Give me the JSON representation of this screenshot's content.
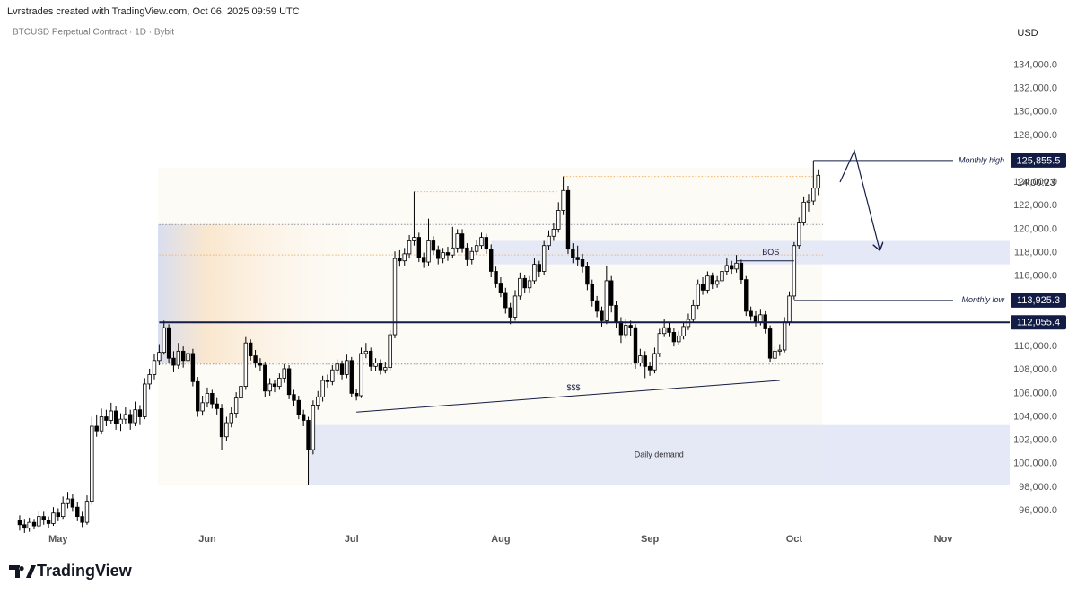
{
  "header": "Lvrstrades created with TradingView.com, Oct 06, 2025 09:59 UTC",
  "footer": "TradingView",
  "chart_data": {
    "type": "candlestick",
    "title": "BTCUSD Perpetual Contract · 1D · Bybit",
    "y_label": "USD",
    "countdown": "14:00:23",
    "up_color": "#ffffff",
    "down_color": "#000000",
    "wick_color": "#000000",
    "grid": false,
    "xlim": [
      -2.6,
      205.8
    ],
    "xticks": [
      {
        "value": 8,
        "label": "May"
      },
      {
        "value": 39,
        "label": "Jun"
      },
      {
        "value": 69,
        "label": "Jul"
      },
      {
        "value": 100,
        "label": "Aug"
      },
      {
        "value": 131,
        "label": "Sep"
      },
      {
        "value": 161,
        "label": "Oct"
      },
      {
        "value": 192,
        "label": "Nov"
      }
    ],
    "ylim": [
      94400,
      136100
    ],
    "yticks": [
      {
        "value": 96000,
        "label": "96,000.0"
      },
      {
        "value": 98000,
        "label": "98,000.0"
      },
      {
        "value": 100000,
        "label": "100,000.0"
      },
      {
        "value": 102000,
        "label": "102,000.0"
      },
      {
        "value": 104000,
        "label": "104,000.0"
      },
      {
        "value": 106000,
        "label": "106,000.0"
      },
      {
        "value": 108000,
        "label": "108,000.0"
      },
      {
        "value": 110000,
        "label": "110,000.0"
      },
      {
        "value": 112000,
        "label": "112,000.0"
      },
      {
        "value": 114000,
        "label": "114,000.0"
      },
      {
        "value": 116000,
        "label": "116,000.0"
      },
      {
        "value": 118000,
        "label": "118,000.0"
      },
      {
        "value": 120000,
        "label": "120,000.0"
      },
      {
        "value": 122000,
        "label": "122,000.0"
      },
      {
        "value": 124000,
        "label": "124,000.0"
      },
      {
        "value": 126000,
        "label": "126,000.0"
      },
      {
        "value": 128000,
        "label": "128,000.0"
      },
      {
        "value": 130000,
        "label": "130,000.0"
      },
      {
        "value": 132000,
        "label": "132,000.0"
      },
      {
        "value": 134000,
        "label": "134,000.0"
      }
    ],
    "candles": [
      [
        95200,
        95600,
        94300,
        94800
      ],
      [
        94800,
        95300,
        94100,
        94500
      ],
      [
        94500,
        95400,
        94200,
        95000
      ],
      [
        95000,
        95300,
        94400,
        94700
      ],
      [
        94700,
        96000,
        94500,
        95500
      ],
      [
        95500,
        95900,
        94800,
        95200
      ],
      [
        95200,
        95500,
        94500,
        94900
      ],
      [
        94900,
        96300,
        94700,
        95800
      ],
      [
        95800,
        96200,
        95100,
        95500
      ],
      [
        95500,
        97200,
        95300,
        96600
      ],
      [
        96600,
        97600,
        96200,
        97000
      ],
      [
        97000,
        97400,
        95900,
        96300
      ],
      [
        96300,
        96700,
        95100,
        95500
      ],
      [
        95500,
        95900,
        94600,
        95000
      ],
      [
        95000,
        97300,
        94800,
        96800
      ],
      [
        96800,
        104000,
        96500,
        103200
      ],
      [
        103200,
        104200,
        102300,
        102800
      ],
      [
        102800,
        104700,
        102500,
        104000
      ],
      [
        104000,
        104600,
        103200,
        103700
      ],
      [
        103700,
        105200,
        103400,
        104500
      ],
      [
        104500,
        104900,
        102900,
        103400
      ],
      [
        103400,
        104300,
        102800,
        103800
      ],
      [
        103800,
        104800,
        103400,
        104200
      ],
      [
        104200,
        104600,
        102900,
        103500
      ],
      [
        103500,
        105300,
        103200,
        104600
      ],
      [
        104600,
        105000,
        103300,
        104000
      ],
      [
        104000,
        107300,
        103800,
        106800
      ],
      [
        106800,
        108100,
        106300,
        107600
      ],
      [
        107600,
        109400,
        107200,
        108800
      ],
      [
        108800,
        110200,
        108400,
        109500
      ],
      [
        109500,
        112200,
        109300,
        111600
      ],
      [
        111600,
        111900,
        108600,
        109000
      ],
      [
        109000,
        109600,
        107800,
        108400
      ],
      [
        108400,
        110300,
        108100,
        109600
      ],
      [
        109600,
        110000,
        108200,
        108800
      ],
      [
        108800,
        110000,
        108400,
        109400
      ],
      [
        109400,
        109800,
        106600,
        107000
      ],
      [
        107000,
        107400,
        104000,
        104500
      ],
      [
        104500,
        105800,
        104100,
        105200
      ],
      [
        105200,
        106500,
        104800,
        106000
      ],
      [
        106000,
        106300,
        104700,
        105100
      ],
      [
        105100,
        105600,
        104200,
        104700
      ],
      [
        104700,
        105100,
        101200,
        102300
      ],
      [
        102300,
        104000,
        101900,
        103500
      ],
      [
        103500,
        104800,
        103100,
        104300
      ],
      [
        104300,
        106100,
        103900,
        105600
      ],
      [
        105600,
        107100,
        105200,
        106600
      ],
      [
        106600,
        110800,
        106300,
        110300
      ],
      [
        110300,
        110600,
        108800,
        109200
      ],
      [
        109200,
        109700,
        108200,
        108600
      ],
      [
        108600,
        109000,
        107900,
        108400
      ],
      [
        108400,
        108700,
        105700,
        106200
      ],
      [
        106200,
        107300,
        105800,
        106800
      ],
      [
        106800,
        107100,
        106100,
        106600
      ],
      [
        106600,
        107700,
        106300,
        107300
      ],
      [
        107300,
        108500,
        106900,
        108100
      ],
      [
        108100,
        108400,
        105500,
        105900
      ],
      [
        105900,
        106300,
        104900,
        105400
      ],
      [
        105400,
        105800,
        103800,
        104200
      ],
      [
        104200,
        104600,
        103200,
        103700
      ],
      [
        103700,
        104000,
        98200,
        101200
      ],
      [
        101200,
        105400,
        100800,
        105000
      ],
      [
        105000,
        106200,
        104600,
        105700
      ],
      [
        105700,
        107500,
        105300,
        107100
      ],
      [
        107100,
        107600,
        106500,
        107000
      ],
      [
        107000,
        108400,
        106700,
        108000
      ],
      [
        108000,
        108900,
        107600,
        108500
      ],
      [
        108500,
        108800,
        107200,
        107600
      ],
      [
        107600,
        109300,
        107300,
        108800
      ],
      [
        108800,
        109100,
        105700,
        106000
      ],
      [
        106000,
        106400,
        105400,
        105800
      ],
      [
        105800,
        109900,
        105600,
        109400
      ],
      [
        109400,
        110300,
        109000,
        109600
      ],
      [
        109600,
        109900,
        107900,
        108300
      ],
      [
        108300,
        109000,
        107900,
        108600
      ],
      [
        108600,
        108900,
        107600,
        108000
      ],
      [
        108000,
        108700,
        107700,
        108200
      ],
      [
        108200,
        111400,
        107900,
        111000
      ],
      [
        111000,
        118100,
        110700,
        117500
      ],
      [
        117500,
        118200,
        116800,
        117300
      ],
      [
        117300,
        118400,
        116900,
        117900
      ],
      [
        117900,
        119500,
        117500,
        119000
      ],
      [
        119000,
        123200,
        118600,
        119300
      ],
      [
        119300,
        119700,
        117200,
        117600
      ],
      [
        117600,
        118000,
        116700,
        117200
      ],
      [
        117200,
        120900,
        116900,
        119000
      ],
      [
        119000,
        119400,
        117800,
        118200
      ],
      [
        118200,
        118600,
        117000,
        117500
      ],
      [
        117500,
        118400,
        117100,
        118000
      ],
      [
        118000,
        118500,
        117300,
        117800
      ],
      [
        117800,
        120200,
        117500,
        118400
      ],
      [
        118400,
        120000,
        118000,
        119600
      ],
      [
        119600,
        120000,
        118000,
        118400
      ],
      [
        118400,
        118800,
        116900,
        117400
      ],
      [
        117400,
        118500,
        117000,
        118100
      ],
      [
        118100,
        119100,
        117800,
        118600
      ],
      [
        118600,
        119700,
        118300,
        119300
      ],
      [
        119300,
        119600,
        117900,
        118300
      ],
      [
        118300,
        118700,
        115900,
        116400
      ],
      [
        116400,
        116800,
        115000,
        115400
      ],
      [
        115400,
        115900,
        114200,
        114600
      ],
      [
        114600,
        115000,
        112800,
        113300
      ],
      [
        113300,
        113700,
        111900,
        112500
      ],
      [
        112500,
        114800,
        112200,
        114300
      ],
      [
        114300,
        116300,
        114000,
        115800
      ],
      [
        115800,
        116100,
        114600,
        115000
      ],
      [
        115000,
        116000,
        114600,
        115600
      ],
      [
        115600,
        117500,
        115300,
        117000
      ],
      [
        117000,
        117300,
        115900,
        116400
      ],
      [
        116400,
        119000,
        116100,
        118600
      ],
      [
        118600,
        119900,
        118200,
        119400
      ],
      [
        119400,
        120500,
        119000,
        120000
      ],
      [
        120000,
        122300,
        119700,
        121600
      ],
      [
        121600,
        124500,
        121200,
        123300
      ],
      [
        123300,
        123700,
        117900,
        118300
      ],
      [
        118300,
        118800,
        117100,
        117600
      ],
      [
        117600,
        118600,
        116900,
        117400
      ],
      [
        117400,
        117900,
        116300,
        116800
      ],
      [
        116800,
        117200,
        114800,
        115300
      ],
      [
        115300,
        115700,
        113400,
        113900
      ],
      [
        113900,
        114300,
        112500,
        113000
      ],
      [
        113000,
        113400,
        111700,
        112200
      ],
      [
        112200,
        116900,
        111900,
        115600
      ],
      [
        115600,
        116000,
        112900,
        113500
      ],
      [
        113500,
        113900,
        111600,
        112100
      ],
      [
        112100,
        112500,
        110300,
        111000
      ],
      [
        111000,
        112300,
        110700,
        111800
      ],
      [
        111800,
        112200,
        110900,
        111600
      ],
      [
        111600,
        111900,
        108100,
        108600
      ],
      [
        108600,
        109800,
        108300,
        109200
      ],
      [
        109200,
        109600,
        107300,
        108300
      ],
      [
        108300,
        108700,
        107500,
        108000
      ],
      [
        108000,
        109900,
        107700,
        109400
      ],
      [
        109400,
        111500,
        109100,
        111100
      ],
      [
        111100,
        112300,
        110800,
        111600
      ],
      [
        111600,
        112000,
        110800,
        111200
      ],
      [
        111200,
        111600,
        110000,
        110400
      ],
      [
        110400,
        111300,
        110100,
        110900
      ],
      [
        110900,
        112100,
        110600,
        111700
      ],
      [
        111700,
        112800,
        111400,
        112300
      ],
      [
        112300,
        114000,
        112000,
        113500
      ],
      [
        113500,
        115700,
        113200,
        115300
      ],
      [
        115300,
        115900,
        114400,
        114800
      ],
      [
        114800,
        116400,
        114500,
        116000
      ],
      [
        116000,
        116300,
        114900,
        115300
      ],
      [
        115300,
        116000,
        115000,
        115600
      ],
      [
        115600,
        116900,
        115300,
        116400
      ],
      [
        116400,
        117500,
        116100,
        116900
      ],
      [
        116900,
        117300,
        116200,
        116600
      ],
      [
        116600,
        117800,
        116300,
        117100
      ],
      [
        117100,
        117400,
        115300,
        115700
      ],
      [
        115700,
        116000,
        112600,
        113000
      ],
      [
        113000,
        113400,
        112200,
        112600
      ],
      [
        112600,
        113000,
        111700,
        112100
      ],
      [
        112100,
        113200,
        111800,
        112700
      ],
      [
        112700,
        113000,
        111100,
        111500
      ],
      [
        111500,
        111800,
        108700,
        109000
      ],
      [
        109000,
        110000,
        108700,
        109600
      ],
      [
        109600,
        110200,
        109200,
        109700
      ],
      [
        109700,
        112500,
        109500,
        112100
      ],
      [
        112100,
        114700,
        111800,
        114300
      ],
      [
        114300,
        118900,
        114000,
        118600
      ],
      [
        118600,
        121000,
        118300,
        120600
      ],
      [
        120600,
        122800,
        120300,
        122300
      ],
      [
        122300,
        123000,
        121500,
        122400
      ],
      [
        122400,
        125855.5,
        122100,
        123500
      ],
      [
        123500,
        125100,
        122900,
        124600
      ]
    ],
    "levels": [
      {
        "value": 125855.5,
        "label": "Monthly high",
        "value_label": "125,855.5",
        "from": 165,
        "line_width": 1
      },
      {
        "value": 113925.3,
        "label": "Monthly low",
        "value_label": "113,925.3",
        "from": 161,
        "line_width": 1
      },
      {
        "value": 112055.4,
        "value_label": "112,055.4",
        "from": 29,
        "line_width": 2
      }
    ],
    "dotted_levels": [
      {
        "value": 120400,
        "from": 29,
        "to": 167,
        "color": "#8a8f9c"
      },
      {
        "value": 108500,
        "from": 29,
        "to": 167,
        "color": "#8a8f9c"
      },
      {
        "value": 117800,
        "from": 29,
        "to": 167,
        "color": "#f3b36a"
      },
      {
        "value": 123200,
        "from": 82,
        "to": 112,
        "color": "#f3b36a"
      },
      {
        "value": 124500,
        "from": 113,
        "to": 165,
        "color": "#f3b36a"
      }
    ],
    "zones": [
      {
        "range": [
          117000,
          119000
        ],
        "from": 98,
        "color": "#dfe4f5"
      },
      {
        "label": "Daily demand",
        "range": [
          98200,
          103300
        ],
        "from": 60,
        "color": "#dfe4f5"
      }
    ],
    "annotations": [
      {
        "text": "BOS",
        "points": [
          [
            149,
            117300
          ],
          [
            161,
            117300
          ]
        ]
      },
      {
        "text": "$$$",
        "points": [
          [
            70,
            104400
          ],
          [
            158,
            107100
          ]
        ]
      }
    ]
  }
}
